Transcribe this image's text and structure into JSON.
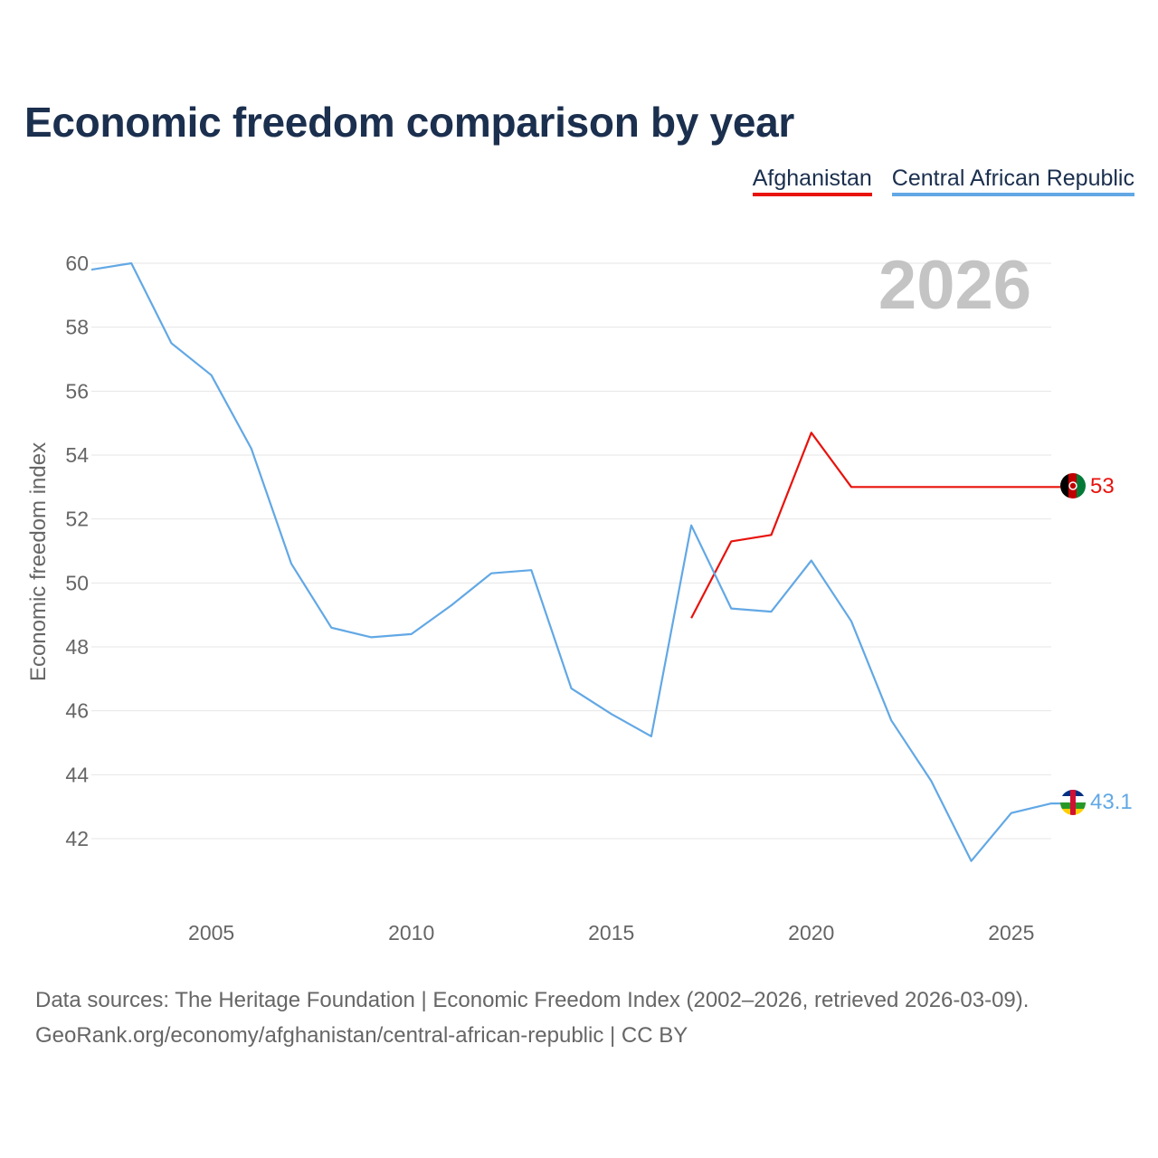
{
  "title": "Economic freedom comparison by year",
  "legend": [
    {
      "name": "Afghanistan",
      "color": "#e8120c"
    },
    {
      "name": "Central African Republic",
      "color": "#62a8e5"
    }
  ],
  "chart_data": {
    "type": "line",
    "title": "Economic freedom comparison by year",
    "xlabel": "",
    "ylabel": "Economic freedom index",
    "xlim": [
      2002,
      2026
    ],
    "ylim": [
      40,
      61
    ],
    "x_ticks": [
      2005,
      2010,
      2015,
      2020,
      2025
    ],
    "y_ticks": [
      42,
      44,
      46,
      48,
      50,
      52,
      54,
      56,
      58,
      60
    ],
    "year_watermark": "2026",
    "series": [
      {
        "name": "Afghanistan",
        "color": "#e8120c",
        "end_label": "53",
        "x": [
          2017,
          2018,
          2019,
          2020,
          2021,
          2022,
          2023,
          2024,
          2025,
          2026
        ],
        "values": [
          48.9,
          51.3,
          51.5,
          54.7,
          53.0,
          53.0,
          53.0,
          53.0,
          53.0,
          53.0
        ]
      },
      {
        "name": "Central African Republic",
        "color": "#62a8e5",
        "end_label": "43.1",
        "x": [
          2002,
          2003,
          2004,
          2005,
          2006,
          2007,
          2008,
          2009,
          2010,
          2011,
          2012,
          2013,
          2014,
          2015,
          2016,
          2017,
          2018,
          2019,
          2020,
          2021,
          2022,
          2023,
          2024,
          2025,
          2026
        ],
        "values": [
          59.8,
          60.0,
          57.5,
          56.5,
          54.2,
          50.6,
          48.6,
          48.3,
          48.4,
          49.3,
          50.3,
          50.4,
          46.7,
          45.9,
          45.2,
          51.8,
          49.2,
          49.1,
          50.7,
          48.8,
          45.7,
          43.8,
          41.3,
          42.8,
          43.1
        ]
      }
    ]
  },
  "source_lines": [
    "Data sources: The Heritage Foundation | Economic Freedom Index (2002–2026, retrieved 2026-03-09).",
    "GeoRank.org/economy/afghanistan/central-african-republic | CC BY"
  ]
}
